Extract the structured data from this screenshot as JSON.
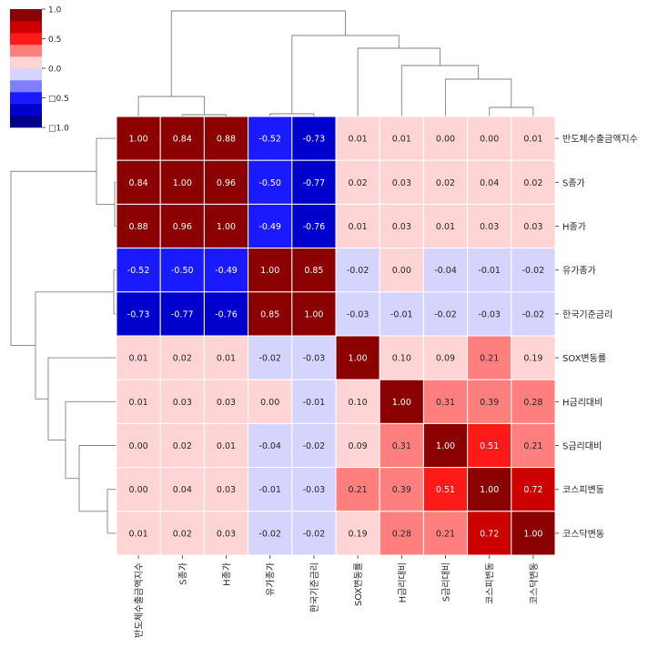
{
  "chart_data": {
    "type": "heatmap",
    "title": "",
    "rows": [
      "반도체수출금액지수",
      "S종가",
      "H종가",
      "유가종가",
      "한국기준금리",
      "SOX변동률",
      "H금리대비",
      "S금리대비",
      "코스피변동",
      "코스닥변동"
    ],
    "columns": [
      "반도체수출금액지수",
      "S종가",
      "H종가",
      "유가종가",
      "한국기준금리",
      "SOX변동률",
      "H금리대비",
      "S금리대비",
      "코스피변동",
      "코스닥변동"
    ],
    "values": [
      [
        1.0,
        0.84,
        0.88,
        -0.52,
        -0.73,
        0.01,
        0.01,
        0.0,
        0.0,
        0.01
      ],
      [
        0.84,
        1.0,
        0.96,
        -0.5,
        -0.77,
        0.02,
        0.03,
        0.02,
        0.04,
        0.02
      ],
      [
        0.88,
        0.96,
        1.0,
        -0.49,
        -0.76,
        0.01,
        0.03,
        0.01,
        0.03,
        0.03
      ],
      [
        -0.52,
        -0.5,
        -0.49,
        1.0,
        0.85,
        -0.02,
        0.0,
        -0.04,
        -0.01,
        -0.02
      ],
      [
        -0.73,
        -0.77,
        -0.76,
        0.85,
        1.0,
        -0.03,
        -0.01,
        -0.02,
        -0.03,
        -0.02
      ],
      [
        0.01,
        0.02,
        0.01,
        -0.02,
        -0.03,
        1.0,
        0.1,
        0.09,
        0.21,
        0.19
      ],
      [
        0.01,
        0.03,
        0.03,
        0.0,
        -0.01,
        0.1,
        1.0,
        0.31,
        0.39,
        0.28
      ],
      [
        0.0,
        0.02,
        0.01,
        -0.04,
        -0.02,
        0.09,
        0.31,
        1.0,
        0.51,
        0.21
      ],
      [
        0.0,
        0.04,
        0.03,
        -0.01,
        -0.03,
        0.21,
        0.39,
        0.51,
        1.0,
        0.72
      ],
      [
        0.01,
        0.02,
        0.03,
        -0.02,
        -0.02,
        0.19,
        0.28,
        0.21,
        0.72,
        1.0
      ]
    ],
    "value_format": "2 decimals",
    "colorbar": {
      "range": [
        -1.0,
        1.0
      ],
      "ticks": [
        "1.0",
        "0.5",
        "0.0",
        "□0.5",
        "□1.0"
      ],
      "colors": [
        "#00008b",
        "#0000cd",
        "#1a1aff",
        "#7f7fff",
        "#d4d4ff",
        "#ffd4d4",
        "#ff7f7f",
        "#ff1a1a",
        "#cd0000",
        "#8b0000"
      ]
    },
    "dendrogram": {
      "order": "row and column order as listed",
      "groups": [
        [
          "반도체수출금액지수",
          "S종가",
          "H종가"
        ],
        [
          "유가종가",
          "한국기준금리"
        ],
        [
          "SOX변동률",
          "H금리대비",
          "S금리대비",
          "코스피변동",
          "코스닥변동"
        ]
      ]
    }
  }
}
